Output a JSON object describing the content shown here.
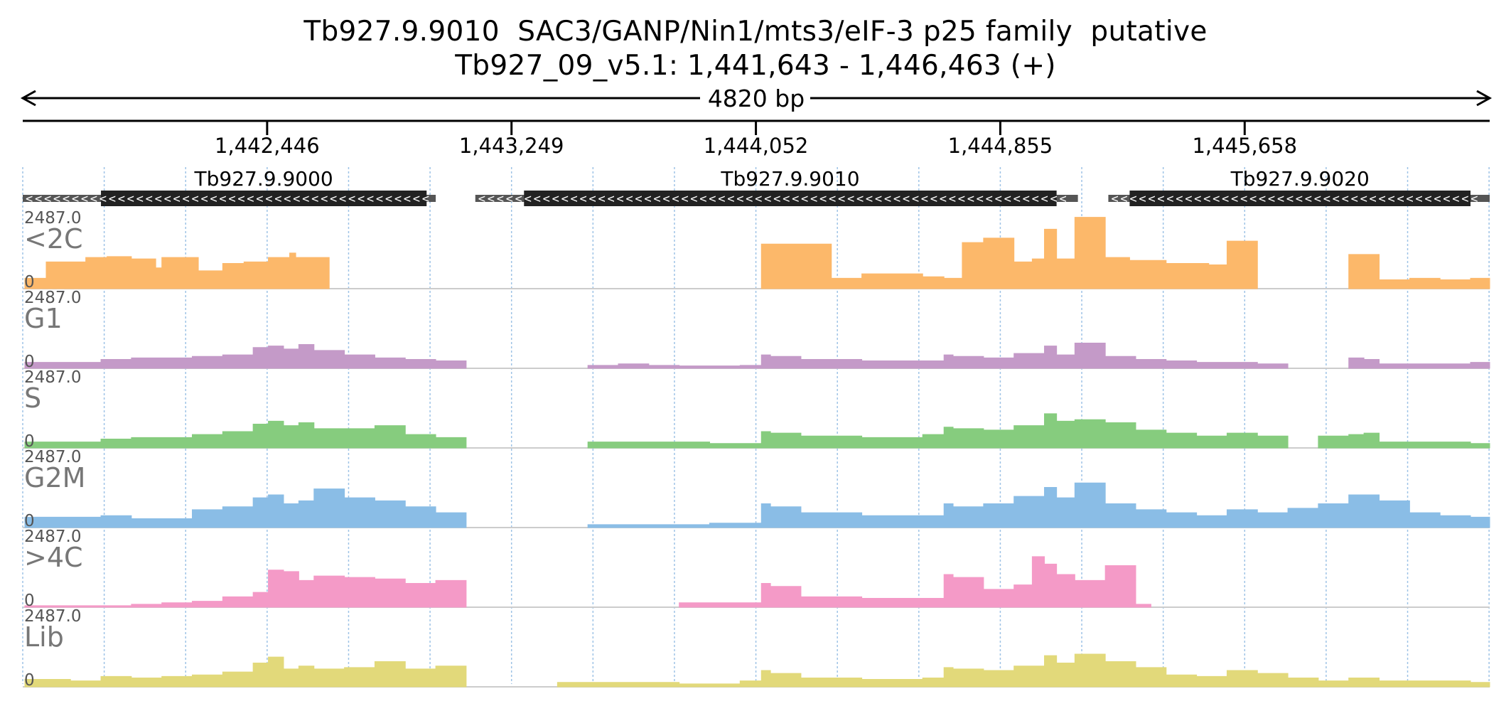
{
  "header": {
    "title": "Tb927.9.9010  SAC3/GANP/Nin1/mts3/eIF-3 p25 family  putative",
    "location": "Tb927_09_v5.1: 1,441,643 - 1,446,463 (+)",
    "span_label": "4820 bp"
  },
  "colors": {
    "axis": "#000000",
    "gene_body": "#222222",
    "utr": "#555555",
    "grid": "#9ec3e6",
    "separator": "#cccccc"
  },
  "chart_data": {
    "type": "area",
    "region": {
      "chrom": "Tb927_09_v5.1",
      "start": 1441643,
      "end": 1446463,
      "strand": "+"
    },
    "ticks": [
      {
        "pos": 1442446,
        "label": "1,442,446"
      },
      {
        "pos": 1443249,
        "label": "1,443,249"
      },
      {
        "pos": 1444052,
        "label": "1,444,052"
      },
      {
        "pos": 1444855,
        "label": "1,444,855"
      },
      {
        "pos": 1445658,
        "label": "1,445,658"
      }
    ],
    "genes": [
      {
        "name": "Tb927.9.9000",
        "strand": "-",
        "utr_start": 1441643,
        "cds_start": 1441900,
        "cds_end": 1442970,
        "utr_end": 1443000
      },
      {
        "name": "Tb927.9.9010",
        "strand": "-",
        "utr_start": 1443130,
        "cds_start": 1443290,
        "cds_end": 1445040,
        "utr_end": 1445110
      },
      {
        "name": "Tb927.9.9020",
        "strand": "-",
        "utr_start": 1445210,
        "cds_start": 1445280,
        "cds_end": 1446400,
        "utr_end": 1446463
      }
    ],
    "ylim": [
      0,
      2487.0
    ],
    "max_label": "2487.0",
    "zero_label": "0",
    "tracks": [
      {
        "name": "<2C",
        "color": "#fcb86a",
        "segments": [
          {
            "x": [
              1441650,
              1441700,
              1441720,
              1441850,
              1441920,
              1442000,
              1442080,
              1442100,
              1442200,
              1442220,
              1442280,
              1442300,
              1442370,
              1442450,
              1442520,
              1442540,
              1442580,
              1442600,
              1442650
            ],
            "y": [
              350,
              350,
              900,
              1050,
              1080,
              1000,
              700,
              1050,
              1050,
              600,
              600,
              850,
              900,
              1050,
              1200,
              1050,
              1050,
              1050,
              1000
            ]
          },
          {
            "x": [
              1444070,
              1444130,
              1444300,
              1444400,
              1444600,
              1444670,
              1444730,
              1444800,
              1444900,
              1444960,
              1445000,
              1445040,
              1445100,
              1445200,
              1445280,
              1445400,
              1445540,
              1445600,
              1445700
            ],
            "y": [
              1500,
              1500,
              350,
              500,
              400,
              350,
              1550,
              1700,
              900,
              1000,
              2000,
              1000,
              2400,
              1050,
              950,
              850,
              800,
              1600,
              1550
            ]
          },
          {
            "x": [
              1446000,
              1446050,
              1446100,
              1446200,
              1446300,
              1446400,
              1446463
            ],
            "y": [
              1150,
              1150,
              300,
              350,
              300,
              350,
              350
            ]
          }
        ]
      },
      {
        "name": "G1",
        "color": "#c49ac8",
        "segments": [
          {
            "x": [
              1441650,
              1441800,
              1441900,
              1442000,
              1442100,
              1442200,
              1442300,
              1442400,
              1442450,
              1442500,
              1442550,
              1442600,
              1442700,
              1442800,
              1442900,
              1443000,
              1443100
            ],
            "y": [
              200,
              200,
              300,
              350,
              350,
              400,
              450,
              700,
              750,
              650,
              800,
              600,
              450,
              350,
              300,
              250,
              100
            ]
          },
          {
            "x": [
              1443500,
              1443600,
              1443700,
              1443800,
              1444000,
              1444070,
              1444100,
              1444200,
              1444400,
              1444600,
              1444670,
              1444700,
              1444800,
              1444900,
              1445000,
              1445040,
              1445100,
              1445200,
              1445300,
              1445400,
              1445500,
              1445700,
              1445800
            ],
            "y": [
              100,
              150,
              100,
              80,
              100,
              450,
              400,
              300,
              250,
              250,
              450,
              400,
              350,
              500,
              750,
              450,
              850,
              400,
              300,
              250,
              200,
              150,
              100
            ]
          },
          {
            "x": [
              1446000,
              1446050,
              1446100,
              1446200,
              1446300,
              1446400,
              1446463
            ],
            "y": [
              350,
              300,
              150,
              150,
              150,
              200,
              200
            ]
          }
        ]
      },
      {
        "name": "S",
        "color": "#86cc7e",
        "segments": [
          {
            "x": [
              1441650,
              1441800,
              1441900,
              1442000,
              1442100,
              1442200,
              1442300,
              1442400,
              1442450,
              1442500,
              1442550,
              1442600,
              1442700,
              1442800,
              1442900,
              1443000,
              1443100
            ],
            "y": [
              200,
              200,
              300,
              350,
              350,
              450,
              550,
              800,
              900,
              750,
              850,
              650,
              650,
              750,
              450,
              350,
              200
            ]
          },
          {
            "x": [
              1443500,
              1443700,
              1443900,
              1444070,
              1444100,
              1444200,
              1444400,
              1444600,
              1444670,
              1444700,
              1444800,
              1444900,
              1445000,
              1445040,
              1445100,
              1445200,
              1445300,
              1445400,
              1445500,
              1445600,
              1445700,
              1445800
            ],
            "y": [
              200,
              200,
              150,
              550,
              500,
              400,
              350,
              450,
              700,
              650,
              600,
              750,
              1150,
              900,
              950,
              850,
              600,
              500,
              400,
              500,
              400,
              300
            ]
          },
          {
            "x": [
              1445900,
              1446000,
              1446050,
              1446100,
              1446200,
              1446300,
              1446400,
              1446463
            ],
            "y": [
              400,
              450,
              500,
              200,
              200,
              200,
              150,
              150
            ]
          }
        ]
      },
      {
        "name": "G2M",
        "color": "#8abde6",
        "segments": [
          {
            "x": [
              1441650,
              1441800,
              1441900,
              1442000,
              1442100,
              1442200,
              1442300,
              1442400,
              1442450,
              1442500,
              1442550,
              1442600,
              1442700,
              1442800,
              1442900,
              1443000,
              1443100
            ],
            "y": [
              350,
              350,
              400,
              300,
              300,
              600,
              700,
              1000,
              1100,
              800,
              900,
              1300,
              1000,
              900,
              700,
              500,
              300
            ]
          },
          {
            "x": [
              1443500,
              1443700,
              1443900,
              1444070,
              1444100,
              1444200,
              1444400,
              1444600,
              1444670,
              1444700,
              1444800,
              1444900,
              1445000,
              1445040,
              1445100,
              1445200,
              1445300,
              1445400,
              1445500,
              1445600,
              1445700,
              1445800,
              1445900,
              1446000,
              1446100,
              1446200,
              1446300,
              1446400,
              1446463
            ],
            "y": [
              100,
              100,
              150,
              800,
              700,
              500,
              400,
              400,
              800,
              700,
              800,
              1050,
              1350,
              1000,
              1500,
              800,
              600,
              500,
              400,
              600,
              500,
              650,
              800,
              1100,
              900,
              500,
              400,
              350,
              300
            ]
          }
        ]
      },
      {
        "name": ">4C",
        "color": "#f49ac7",
        "segments": [
          {
            "x": [
              1441650,
              1441900,
              1442000,
              1442100,
              1442200,
              1442300,
              1442400,
              1442450,
              1442500,
              1442550,
              1442600,
              1442700,
              1442800,
              1442900,
              1443000,
              1443100
            ],
            "y": [
              50,
              50,
              100,
              150,
              200,
              350,
              500,
              1250,
              1200,
              900,
              1050,
              1000,
              950,
              800,
              900,
              800
            ]
          },
          {
            "x": [
              1443800,
              1443900,
              1444070,
              1444100,
              1444200,
              1444400,
              1444600,
              1444670,
              1444700,
              1444800,
              1444900,
              1444960,
              1445000,
              1445040,
              1445100,
              1445200,
              1445300,
              1445350
            ],
            "y": [
              150,
              150,
              800,
              700,
              350,
              300,
              300,
              1100,
              1000,
              600,
              750,
              1700,
              1450,
              1100,
              900,
              1400,
              100,
              50
            ]
          }
        ]
      },
      {
        "name": "Lib",
        "color": "#e2d97a",
        "segments": [
          {
            "x": [
              1441650,
              1441800,
              1441900,
              1442000,
              1442100,
              1442200,
              1442300,
              1442400,
              1442450,
              1442500,
              1442550,
              1442600,
              1442700,
              1442800,
              1442900,
              1443000,
              1443100
            ],
            "y": [
              250,
              200,
              350,
              300,
              350,
              400,
              500,
              800,
              1000,
              600,
              700,
              600,
              650,
              850,
              600,
              700,
              300
            ]
          },
          {
            "x": [
              1443400,
              1443600,
              1443800,
              1444000,
              1444070,
              1444100,
              1444200,
              1444400,
              1444600,
              1444670,
              1444700,
              1444800,
              1444900,
              1445000,
              1445040,
              1445100,
              1445200,
              1445300,
              1445400,
              1445500,
              1445600,
              1445700,
              1445800,
              1445900,
              1446000,
              1446100,
              1446200,
              1446300,
              1446400,
              1446463
            ],
            "y": [
              150,
              150,
              100,
              200,
              550,
              450,
              300,
              250,
              300,
              650,
              600,
              550,
              700,
              1050,
              800,
              1100,
              850,
              650,
              400,
              350,
              550,
              450,
              300,
              200,
              300,
              200,
              200,
              200,
              150,
              100
            ]
          }
        ]
      }
    ]
  }
}
